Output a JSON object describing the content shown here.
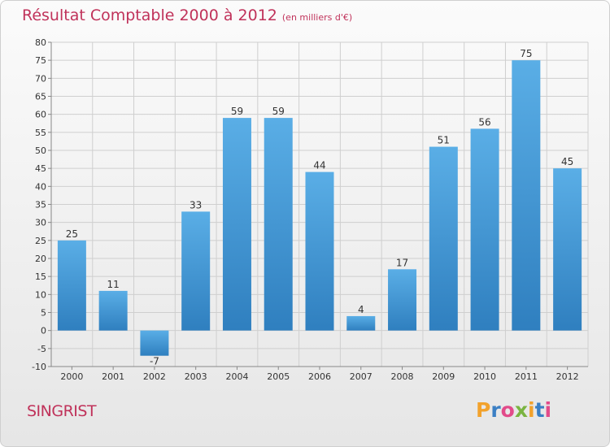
{
  "title": "Résultat Comptable 2000 à 2012",
  "subtitle": "(en milliers d'€)",
  "commune": "SINGRIST",
  "logo": {
    "letters": [
      "P",
      "r",
      "o",
      "x",
      "i",
      "t",
      "i"
    ],
    "colors": [
      "#f2a22c",
      "#3b7fc4",
      "#e24b8a",
      "#7ab441",
      "#f2a22c",
      "#3b7fc4",
      "#e24b8a"
    ]
  },
  "colors": {
    "bar_light": "#5aaee6",
    "bar_dark": "#2f7fbf",
    "title": "#c0325a",
    "grid": "#cfcfcf"
  },
  "chart_data": {
    "type": "bar",
    "title": "Résultat Comptable 2000 à 2012",
    "xlabel": "",
    "ylabel": "en milliers d'€",
    "categories": [
      "2000",
      "2001",
      "2002",
      "2003",
      "2004",
      "2005",
      "2006",
      "2007",
      "2008",
      "2009",
      "2010",
      "2011",
      "2012"
    ],
    "values": [
      25,
      11,
      -7,
      33,
      59,
      59,
      44,
      4,
      17,
      51,
      56,
      75,
      45
    ],
    "ylim": [
      -10,
      80
    ],
    "yticks": [
      -10,
      -5,
      0,
      5,
      10,
      15,
      20,
      25,
      30,
      35,
      40,
      45,
      50,
      55,
      60,
      65,
      70,
      75,
      80
    ],
    "grid": true
  }
}
